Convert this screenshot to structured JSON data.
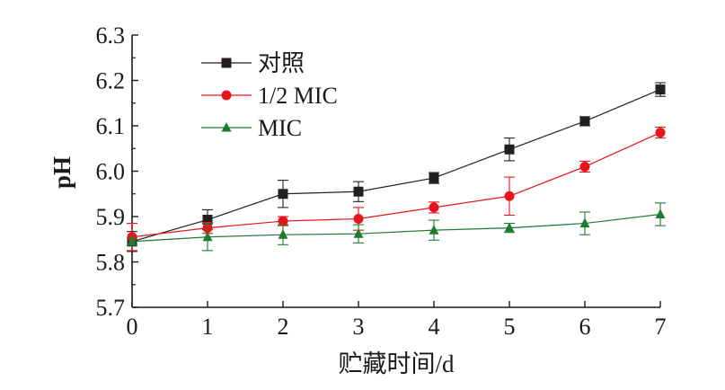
{
  "chart_data": {
    "type": "line",
    "title": "",
    "xlabel": "贮藏时间/d",
    "ylabel": "pH",
    "xlim": [
      0,
      7
    ],
    "ylim": [
      5.7,
      6.3
    ],
    "x": [
      0,
      1,
      2,
      3,
      4,
      5,
      6,
      7
    ],
    "x_ticks": [
      "0",
      "1",
      "2",
      "3",
      "4",
      "5",
      "6",
      "7"
    ],
    "y_ticks": [
      "5.7",
      "5.8",
      "5.9",
      "6.0",
      "6.1",
      "6.2",
      "6.3"
    ],
    "grid": false,
    "legend_position": "top-left",
    "series": [
      {
        "name": "对照",
        "marker": "square",
        "color": "#231f20",
        "values": [
          5.845,
          5.893,
          5.95,
          5.955,
          5.985,
          6.048,
          6.11,
          6.18
        ],
        "errors": [
          0.022,
          0.022,
          0.03,
          0.022,
          0.012,
          0.025,
          0.01,
          0.015
        ]
      },
      {
        "name": "1/2 MIC",
        "marker": "circle",
        "color": "#e8141b",
        "values": [
          5.855,
          5.875,
          5.89,
          5.895,
          5.92,
          5.945,
          6.01,
          6.085
        ],
        "errors": [
          0.03,
          0.012,
          0.01,
          0.025,
          0.012,
          0.042,
          0.012,
          0.012
        ]
      },
      {
        "name": "MIC",
        "marker": "triangle",
        "color": "#1e7b31",
        "values": [
          5.845,
          5.855,
          5.86,
          5.862,
          5.87,
          5.875,
          5.885,
          5.905
        ],
        "errors": [
          0.008,
          0.03,
          0.022,
          0.02,
          0.022,
          0.01,
          0.025,
          0.025
        ]
      }
    ]
  }
}
